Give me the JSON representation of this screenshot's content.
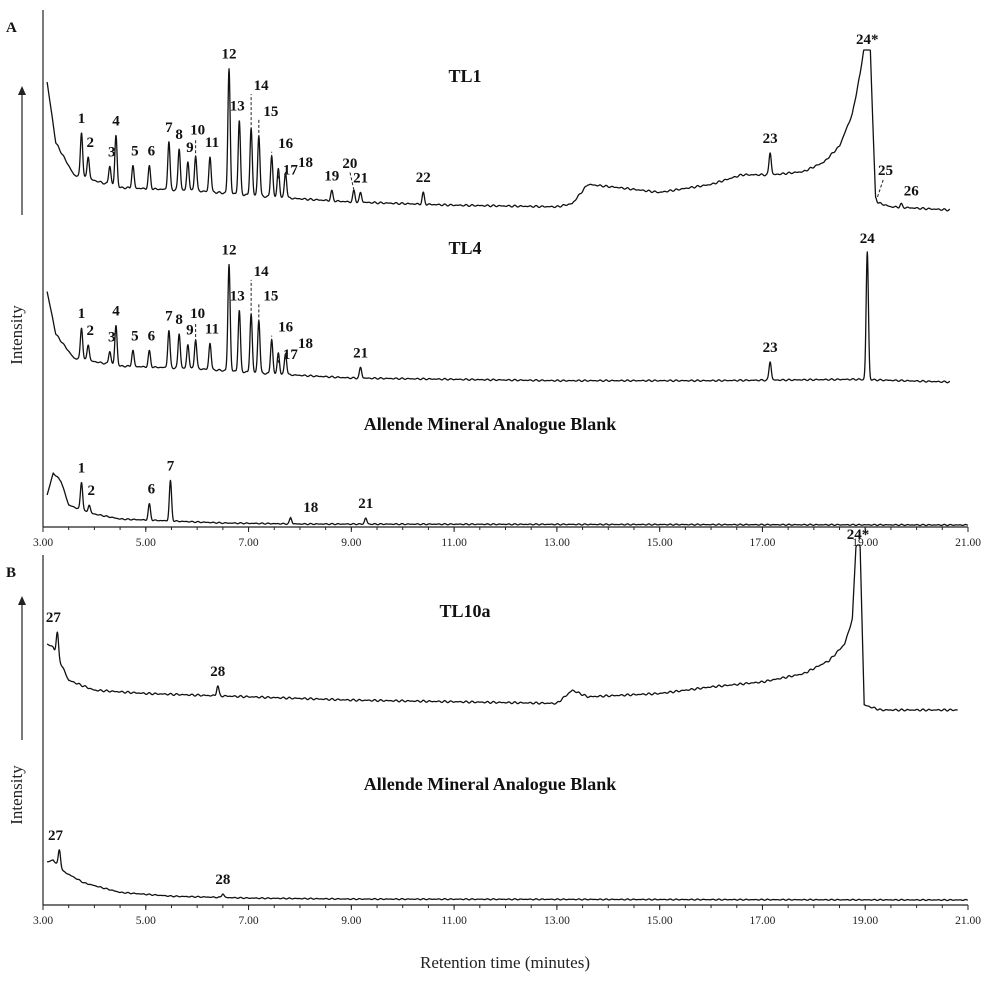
{
  "figure": {
    "x_axis_title": "Retention time (minutes)",
    "y_axis_title": "Intensity"
  },
  "chart_data": [
    {
      "type": "line",
      "panel": "A",
      "xlabel": "Retention time (minutes)",
      "ylabel": "Intensity",
      "xlim": [
        3.0,
        21.0
      ],
      "x_tick_labels": [
        "3.00",
        "5.00",
        "7.00",
        "9.00",
        "11.00",
        "13.00",
        "15.00",
        "17.00",
        "19.00",
        "21.00"
      ],
      "series": [
        {
          "name": "TL1",
          "baseline": [
            [
              3.08,
              0.8
            ],
            [
              3.25,
              0.42
            ],
            [
              3.6,
              0.22
            ],
            [
              4.5,
              0.14
            ],
            [
              6.0,
              0.12
            ],
            [
              7.5,
              0.08
            ],
            [
              9.0,
              0.05
            ],
            [
              11.0,
              0.03
            ],
            [
              13.0,
              0.02
            ],
            [
              13.3,
              0.04
            ],
            [
              13.6,
              0.16
            ],
            [
              14.2,
              0.14
            ],
            [
              15.0,
              0.11
            ],
            [
              16.0,
              0.16
            ],
            [
              16.6,
              0.22
            ],
            [
              17.2,
              0.22
            ],
            [
              17.8,
              0.24
            ],
            [
              18.2,
              0.3
            ],
            [
              18.5,
              0.4
            ],
            [
              18.75,
              0.6
            ],
            [
              18.9,
              0.85
            ],
            [
              18.97,
              1.0
            ],
            [
              19.1,
              1.0
            ],
            [
              19.2,
              0.05
            ],
            [
              19.5,
              0.02
            ],
            [
              20.65,
              0.0
            ]
          ],
          "peaks": [
            {
              "label": "1",
              "rt": 3.75,
              "height": 0.28
            },
            {
              "label": "2",
              "rt": 3.88,
              "height": 0.14
            },
            {
              "label": "3",
              "rt": 4.3,
              "height": 0.12
            },
            {
              "label": "4",
              "rt": 4.42,
              "height": 0.32
            },
            {
              "label": "5",
              "rt": 4.75,
              "height": 0.14
            },
            {
              "label": "6",
              "rt": 5.07,
              "height": 0.14
            },
            {
              "label": "7",
              "rt": 5.45,
              "height": 0.3
            },
            {
              "label": "8",
              "rt": 5.65,
              "height": 0.26
            },
            {
              "label": "9",
              "rt": 5.82,
              "height": 0.18
            },
            {
              "label": "10",
              "rt": 5.97,
              "height": 0.22
            },
            {
              "label": "11",
              "rt": 6.25,
              "height": 0.22
            },
            {
              "label": "12",
              "rt": 6.62,
              "height": 0.78
            },
            {
              "label": "13",
              "rt": 6.82,
              "height": 0.46
            },
            {
              "label": "14",
              "rt": 7.05,
              "height": 0.42
            },
            {
              "label": "15",
              "rt": 7.2,
              "height": 0.38
            },
            {
              "label": "16",
              "rt": 7.45,
              "height": 0.26
            },
            {
              "label": "17",
              "rt": 7.58,
              "height": 0.18
            },
            {
              "label": "18",
              "rt": 7.72,
              "height": 0.16
            },
            {
              "label": "19",
              "rt": 8.62,
              "height": 0.06
            },
            {
              "label": "20",
              "rt": 9.05,
              "height": 0.07
            },
            {
              "label": "21",
              "rt": 9.18,
              "height": 0.06
            },
            {
              "label": "22",
              "rt": 10.4,
              "height": 0.07
            },
            {
              "label": "23",
              "rt": 17.15,
              "height": 0.14
            },
            {
              "label": "24*",
              "rt": 19.04,
              "height": 0.0
            },
            {
              "label": "25",
              "rt": 19.2,
              "height": 0.03
            },
            {
              "label": "26",
              "rt": 19.7,
              "height": 0.02
            }
          ]
        },
        {
          "name": "TL4",
          "baseline": [
            [
              3.08,
              0.68
            ],
            [
              3.25,
              0.36
            ],
            [
              3.6,
              0.18
            ],
            [
              4.5,
              0.12
            ],
            [
              6.0,
              0.1
            ],
            [
              7.5,
              0.06
            ],
            [
              9.0,
              0.03
            ],
            [
              11.0,
              0.02
            ],
            [
              13.0,
              0.01
            ],
            [
              16.0,
              0.01
            ],
            [
              18.8,
              0.02
            ],
            [
              20.65,
              0.0
            ]
          ],
          "peaks": [
            {
              "label": "1",
              "rt": 3.75,
              "height": 0.24
            },
            {
              "label": "2",
              "rt": 3.88,
              "height": 0.12
            },
            {
              "label": "3",
              "rt": 4.3,
              "height": 0.1
            },
            {
              "label": "4",
              "rt": 4.42,
              "height": 0.3
            },
            {
              "label": "5",
              "rt": 4.75,
              "height": 0.12
            },
            {
              "label": "6",
              "rt": 5.07,
              "height": 0.12
            },
            {
              "label": "7",
              "rt": 5.45,
              "height": 0.28
            },
            {
              "label": "8",
              "rt": 5.65,
              "height": 0.26
            },
            {
              "label": "9",
              "rt": 5.82,
              "height": 0.18
            },
            {
              "label": "10",
              "rt": 5.97,
              "height": 0.22
            },
            {
              "label": "11",
              "rt": 6.25,
              "height": 0.2
            },
            {
              "label": "12",
              "rt": 6.62,
              "height": 0.8
            },
            {
              "label": "13",
              "rt": 6.82,
              "height": 0.46
            },
            {
              "label": "14",
              "rt": 7.05,
              "height": 0.44
            },
            {
              "label": "15",
              "rt": 7.2,
              "height": 0.4
            },
            {
              "label": "16",
              "rt": 7.45,
              "height": 0.26
            },
            {
              "label": "17",
              "rt": 7.58,
              "height": 0.16
            },
            {
              "label": "18",
              "rt": 7.72,
              "height": 0.16
            },
            {
              "label": "21",
              "rt": 9.18,
              "height": 0.08
            },
            {
              "label": "23",
              "rt": 17.15,
              "height": 0.14
            },
            {
              "label": "24",
              "rt": 19.04,
              "height": 0.96
            }
          ]
        },
        {
          "name": "Allende Mineral Analogue Blank",
          "baseline": [
            [
              3.08,
              0.3
            ],
            [
              3.2,
              0.52
            ],
            [
              3.35,
              0.44
            ],
            [
              3.5,
              0.2
            ],
            [
              3.9,
              0.12
            ],
            [
              4.5,
              0.06
            ],
            [
              5.5,
              0.04
            ],
            [
              6.5,
              0.02
            ],
            [
              8.0,
              0.01
            ],
            [
              21.0,
              0.0
            ]
          ],
          "peaks": [
            {
              "label": "1",
              "rt": 3.75,
              "height": 0.28
            },
            {
              "label": "2",
              "rt": 3.9,
              "height": 0.08
            },
            {
              "label": "6",
              "rt": 5.07,
              "height": 0.16
            },
            {
              "label": "7",
              "rt": 5.48,
              "height": 0.4
            },
            {
              "label": "18",
              "rt": 7.82,
              "height": 0.06
            },
            {
              "label": "21",
              "rt": 9.28,
              "height": 0.06
            }
          ]
        }
      ]
    },
    {
      "type": "line",
      "panel": "B",
      "xlabel": "Retention time (minutes)",
      "ylabel": "Intensity",
      "xlim": [
        3.0,
        21.0
      ],
      "x_tick_labels": [
        "3.00",
        "5.00",
        "7.00",
        "9.00",
        "11.00",
        "13.00",
        "15.00",
        "17.00",
        "19.00",
        "21.00"
      ],
      "series": [
        {
          "name": "TL10a",
          "baseline": [
            [
              3.08,
              0.4
            ],
            [
              3.2,
              0.38
            ],
            [
              3.5,
              0.18
            ],
            [
              4.0,
              0.12
            ],
            [
              5.0,
              0.1
            ],
            [
              7.0,
              0.08
            ],
            [
              9.0,
              0.06
            ],
            [
              11.0,
              0.05
            ],
            [
              13.0,
              0.04
            ],
            [
              13.3,
              0.12
            ],
            [
              13.6,
              0.08
            ],
            [
              15.0,
              0.1
            ],
            [
              16.0,
              0.14
            ],
            [
              17.0,
              0.17
            ],
            [
              17.8,
              0.22
            ],
            [
              18.3,
              0.3
            ],
            [
              18.6,
              0.4
            ],
            [
              18.75,
              0.55
            ],
            [
              18.82,
              1.0
            ],
            [
              18.9,
              1.0
            ],
            [
              18.98,
              0.03
            ],
            [
              19.3,
              0.0
            ],
            [
              20.8,
              0.0
            ]
          ],
          "peaks": [
            {
              "label": "27",
              "rt": 3.28,
              "height": 0.14
            },
            {
              "label": "28",
              "rt": 6.4,
              "height": 0.06
            },
            {
              "label": "24*",
              "rt": 18.86,
              "height": 0.0
            }
          ]
        },
        {
          "name": "Allende Mineral Analogue Blank",
          "baseline": [
            [
              3.08,
              0.4
            ],
            [
              3.2,
              0.42
            ],
            [
              3.4,
              0.3
            ],
            [
              3.8,
              0.18
            ],
            [
              4.5,
              0.08
            ],
            [
              5.5,
              0.04
            ],
            [
              7.0,
              0.02
            ],
            [
              9.0,
              0.01
            ],
            [
              21.0,
              0.0
            ]
          ],
          "peaks": [
            {
              "label": "27",
              "rt": 3.32,
              "height": 0.18
            },
            {
              "label": "28",
              "rt": 6.5,
              "height": 0.04
            }
          ]
        }
      ]
    }
  ]
}
